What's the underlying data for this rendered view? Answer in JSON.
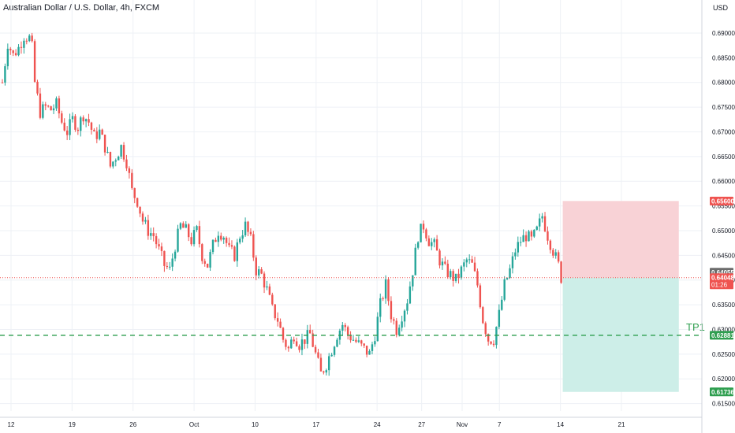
{
  "chart_title": "Australian Dollar / U.S. Dollar, 4h, FXCM",
  "price_unit": "USD",
  "colors": {
    "up_candle": "#26a69a",
    "down_candle": "#ef5350",
    "grid": "#eef1f6",
    "axis_text": "#131722",
    "stop_zone": "#f8d2d6",
    "target_zone": "#cdeee8",
    "tp_line": "#2e9e4f",
    "current_price_tag": "#ef5350",
    "stop_tag": "#ef5350",
    "tp_tag": "#2e9e4f",
    "target_tag": "#2e9e4f",
    "last_close_tag": "#6b6b6b"
  },
  "chart_data": {
    "type": "candlestick",
    "title": "Australian Dollar / U.S. Dollar, 4h, FXCM",
    "xlabel": "",
    "ylabel": "USD",
    "y_ticks": [
      "0.69000",
      "0.68500",
      "0.68000",
      "0.67500",
      "0.67000",
      "0.66500",
      "0.66000",
      "0.65500",
      "0.65000",
      "0.64500",
      "0.64000",
      "0.63500",
      "0.63000",
      "0.62500",
      "0.62000",
      "0.61500"
    ],
    "ylim": [
      0.6135,
      0.6935
    ],
    "x_tick_labels": [
      "12",
      "19",
      "26",
      "Oct",
      "10",
      "17",
      "24",
      "27",
      "Nov",
      "7",
      "14",
      "21"
    ],
    "xlim": [
      0,
      260
    ],
    "x_tick_positions": [
      0,
      22.6,
      45.2,
      67.8,
      90.4,
      113.0,
      135.6,
      152.1,
      167.1,
      180.9,
      203.5,
      226.1
    ],
    "grid": true,
    "price_path": [
      [
        0,
        0.68
      ],
      [
        2,
        0.688
      ],
      [
        4,
        0.6855
      ],
      [
        6,
        0.687
      ],
      [
        8,
        0.6895
      ],
      [
        10,
        0.689
      ],
      [
        11,
        0.687
      ],
      [
        12,
        0.68
      ],
      [
        14,
        0.674
      ],
      [
        16,
        0.675
      ],
      [
        18,
        0.6745
      ],
      [
        20,
        0.6755
      ],
      [
        22,
        0.672
      ],
      [
        24,
        0.67
      ],
      [
        26,
        0.6725
      ],
      [
        28,
        0.671
      ],
      [
        30,
        0.6735
      ],
      [
        32,
        0.672
      ],
      [
        34,
        0.669
      ],
      [
        36,
        0.67
      ],
      [
        38,
        0.667
      ],
      [
        40,
        0.663
      ],
      [
        42,
        0.665
      ],
      [
        44,
        0.667
      ],
      [
        46,
        0.664
      ],
      [
        48,
        0.658
      ],
      [
        50,
        0.656
      ],
      [
        52,
        0.652
      ],
      [
        54,
        0.65
      ],
      [
        56,
        0.649
      ],
      [
        58,
        0.646
      ],
      [
        60,
        0.643
      ],
      [
        62,
        0.642
      ],
      [
        64,
        0.647
      ],
      [
        66,
        0.651
      ],
      [
        68,
        0.65
      ],
      [
        70,
        0.648
      ],
      [
        72,
        0.65
      ],
      [
        74,
        0.645
      ],
      [
        76,
        0.643
      ],
      [
        78,
        0.647
      ],
      [
        80,
        0.65
      ],
      [
        82,
        0.649
      ],
      [
        84,
        0.646
      ],
      [
        86,
        0.645
      ],
      [
        88,
        0.649
      ],
      [
        90,
        0.651
      ],
      [
        92,
        0.648
      ],
      [
        94,
        0.642
      ],
      [
        96,
        0.641
      ],
      [
        98,
        0.638
      ],
      [
        100,
        0.634
      ],
      [
        102,
        0.632
      ],
      [
        104,
        0.628
      ],
      [
        106,
        0.626
      ],
      [
        108,
        0.629
      ],
      [
        110,
        0.627
      ],
      [
        112,
        0.628
      ],
      [
        114,
        0.629
      ],
      [
        116,
        0.625
      ],
      [
        118,
        0.621
      ],
      [
        120,
        0.623
      ],
      [
        122,
        0.626
      ],
      [
        124,
        0.629
      ],
      [
        126,
        0.631
      ],
      [
        128,
        0.629
      ],
      [
        130,
        0.628
      ],
      [
        132,
        0.627
      ],
      [
        134,
        0.626
      ],
      [
        136,
        0.625
      ],
      [
        138,
        0.629
      ],
      [
        140,
        0.635
      ],
      [
        142,
        0.639
      ],
      [
        144,
        0.633
      ],
      [
        146,
        0.63
      ],
      [
        148,
        0.633
      ],
      [
        150,
        0.636
      ],
      [
        152,
        0.642
      ],
      [
        154,
        0.649
      ],
      [
        156,
        0.651
      ],
      [
        158,
        0.648
      ],
      [
        160,
        0.647
      ],
      [
        162,
        0.644
      ],
      [
        164,
        0.642
      ],
      [
        166,
        0.641
      ],
      [
        168,
        0.64
      ],
      [
        170,
        0.642
      ],
      [
        172,
        0.644
      ],
      [
        174,
        0.643
      ],
      [
        176,
        0.639
      ],
      [
        178,
        0.632
      ],
      [
        180,
        0.628
      ],
      [
        182,
        0.628
      ],
      [
        184,
        0.633
      ],
      [
        186,
        0.639
      ],
      [
        188,
        0.642
      ],
      [
        190,
        0.646
      ],
      [
        192,
        0.648
      ],
      [
        194,
        0.649
      ],
      [
        196,
        0.648
      ],
      [
        198,
        0.65
      ],
      [
        200,
        0.653
      ],
      [
        202,
        0.649
      ],
      [
        204,
        0.646
      ],
      [
        206,
        0.643
      ],
      [
        207,
        0.6405
      ]
    ],
    "annotations": {
      "tp_label": "TP1",
      "tp_level": 0.62881,
      "stop_level": 0.656,
      "target_level": 0.61736,
      "entry_level": 0.64048,
      "position_x_range": [
        207,
        250
      ]
    },
    "price_tags": {
      "stop": "0.65600",
      "last_close": "0.64055",
      "current_price": "0.64048",
      "countdown": "01:26",
      "tp": "0.62881",
      "target": "0.61736"
    }
  }
}
